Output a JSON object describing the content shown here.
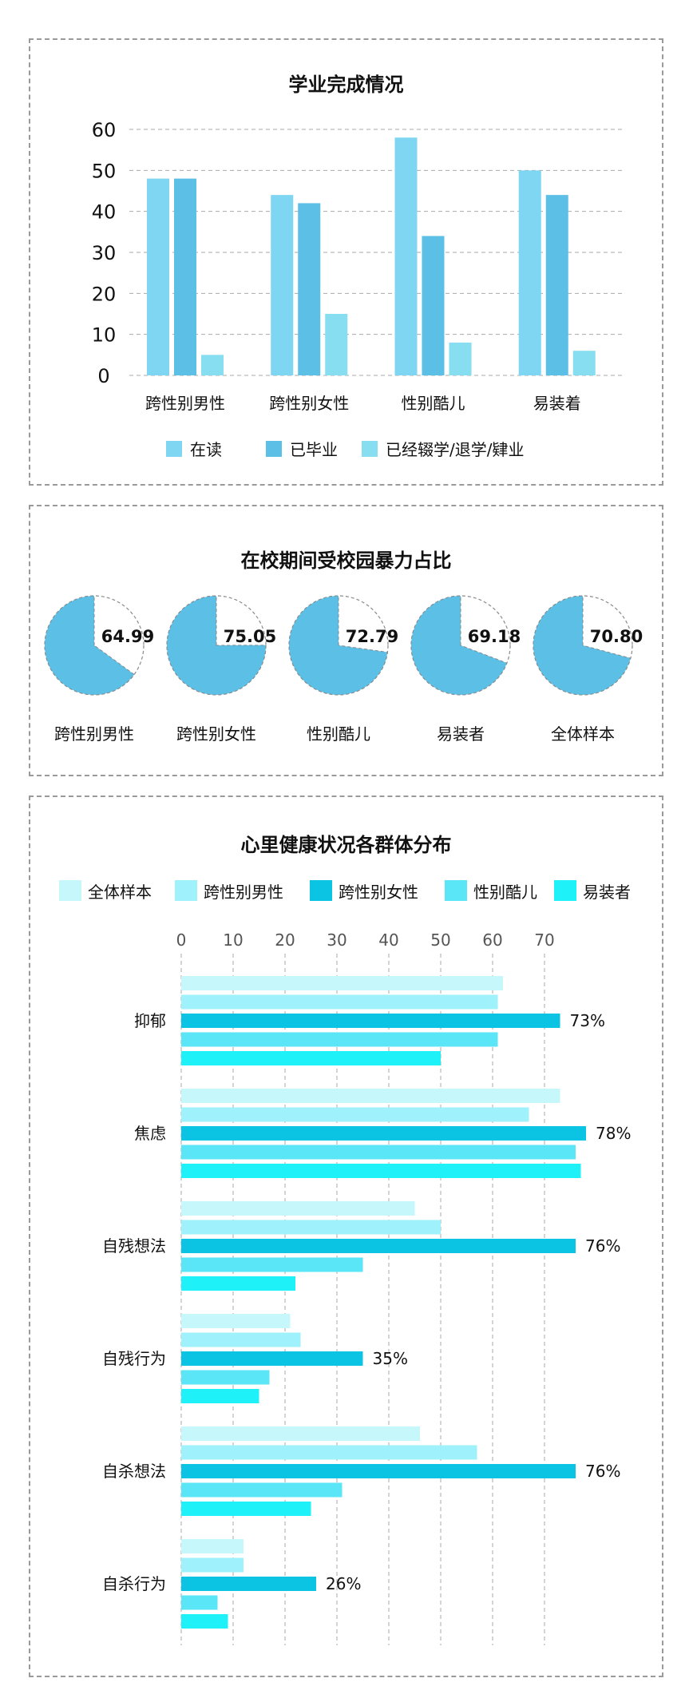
{
  "colors": {
    "bar1_s1": "#7fd6f2",
    "bar1_s2": "#5bbfe6",
    "bar1_s3": "#86def0",
    "pie_fill": "#5bbfe6",
    "grid": "#aaaaaa",
    "hbar": [
      "#c6f7fb",
      "#9ff2fb",
      "#0bc3e3",
      "#5ae6f7",
      "#1ff1f9"
    ]
  },
  "chart_data": [
    {
      "type": "bar",
      "title": "学业完成情况",
      "categories": [
        "跨性别男性",
        "跨性别女性",
        "性别酷儿",
        "易装着"
      ],
      "series": [
        {
          "name": "在读",
          "values": [
            48,
            44,
            58,
            50
          ]
        },
        {
          "name": "已毕业",
          "values": [
            48,
            42,
            34,
            44
          ]
        },
        {
          "name": "已经辍学/退学/肄业",
          "values": [
            5,
            15,
            8,
            6
          ]
        }
      ],
      "ylim": [
        0,
        60
      ],
      "yticks": [
        0,
        10,
        20,
        30,
        40,
        50,
        60
      ],
      "xlabel": "",
      "ylabel": "",
      "grid": true,
      "legend": "bottom"
    },
    {
      "type": "pie",
      "title": "在校期间受校园暴力占比",
      "items": [
        {
          "label": "跨性别男性",
          "value": 64.99,
          "value_text": "64.99"
        },
        {
          "label": "跨性别女性",
          "value": 75.05,
          "value_text": "75.05"
        },
        {
          "label": "性别酷儿",
          "value": 72.79,
          "value_text": "72.79"
        },
        {
          "label": "易装者",
          "value": 69.18,
          "value_text": "69.18"
        },
        {
          "label": "全体样本",
          "value": 70.8,
          "value_text": "70.80"
        }
      ]
    },
    {
      "type": "bar",
      "orientation": "horizontal",
      "title": "心里健康状况各群体分布",
      "categories": [
        "抑郁",
        "焦虑",
        "自残想法",
        "自残行为",
        "自杀想法",
        "自杀行为"
      ],
      "series": [
        {
          "name": "全体样本",
          "values": [
            62,
            73,
            45,
            21,
            46,
            12
          ]
        },
        {
          "name": "跨性别男性",
          "values": [
            61,
            67,
            50,
            23,
            57,
            12
          ]
        },
        {
          "name": "跨性别女性",
          "values": [
            73,
            78,
            76,
            35,
            76,
            26
          ]
        },
        {
          "name": "性别酷儿",
          "values": [
            61,
            76,
            35,
            17,
            31,
            7
          ]
        },
        {
          "name": "易装者",
          "values": [
            50,
            77,
            22,
            15,
            25,
            9
          ]
        }
      ],
      "data_labels": [
        "73%",
        "78%",
        "76%",
        "35%",
        "76%",
        "26%"
      ],
      "xlim": [
        0,
        75
      ],
      "xticks": [
        0,
        10,
        20,
        30,
        40,
        50,
        60,
        70
      ],
      "grid": true,
      "legend": "top"
    }
  ]
}
